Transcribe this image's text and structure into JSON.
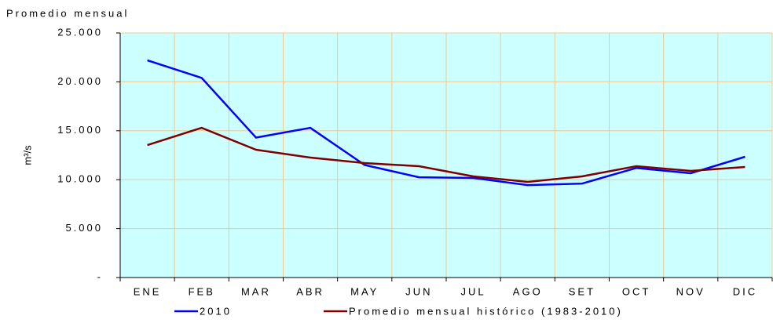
{
  "chart_data": {
    "type": "line",
    "title": "Promedio mensual",
    "y_label": "m³/s",
    "categories": [
      "ENE",
      "FEB",
      "MAR",
      "ABR",
      "MAY",
      "JUN",
      "JUL",
      "AGO",
      "SET",
      "OCT",
      "NOV",
      "DIC"
    ],
    "series": [
      {
        "name": "2010",
        "color": "#0000ff",
        "values": [
          22200,
          20400,
          14300,
          15300,
          11500,
          10250,
          10180,
          9450,
          9600,
          11200,
          10660,
          12340
        ]
      },
      {
        "name": "Promedio mensual histórico (1983-2010)",
        "color": "#800000",
        "values": [
          13540,
          15300,
          13060,
          12260,
          11700,
          11380,
          10340,
          9780,
          10340,
          11380,
          10900,
          11300
        ]
      }
    ],
    "ylim": [
      0,
      25000
    ],
    "yticks": [
      {
        "value": 0,
        "label": "-"
      },
      {
        "value": 5000,
        "label": "5.000"
      },
      {
        "value": 10000,
        "label": "10.000"
      },
      {
        "value": 15000,
        "label": "15.000"
      },
      {
        "value": 20000,
        "label": "20.000"
      },
      {
        "value": 25000,
        "label": "25.000"
      }
    ],
    "grid": true,
    "background": "#ccffff",
    "grid_color": "#f0c890",
    "legend": "bottom"
  }
}
